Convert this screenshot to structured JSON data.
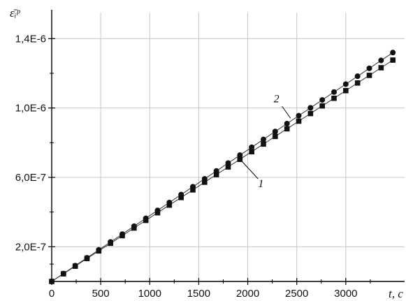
{
  "chart_data": {
    "type": "line",
    "title": "",
    "xlabel": "t, c",
    "ylabel": "ε̄ᵢᵖ",
    "xlim": [
      0,
      3600
    ],
    "ylim": [
      0,
      1.55e-06
    ],
    "grid": true,
    "x_ticks": [
      0,
      500,
      1000,
      1500,
      2000,
      2500,
      3000
    ],
    "x_tick_labels": [
      "0",
      "500",
      "1000",
      "1500",
      "2000",
      "2500",
      "3000"
    ],
    "y_ticks": [
      2e-07,
      6e-07,
      1e-06,
      1.4e-06
    ],
    "y_tick_labels": [
      "2,0E-7",
      "6,0E-7",
      "1,0E-6",
      "1,4E-6"
    ],
    "series": [
      {
        "name": "1",
        "marker": "square",
        "x": [
          0,
          120,
          240,
          360,
          480,
          600,
          720,
          840,
          960,
          1080,
          1200,
          1320,
          1440,
          1560,
          1680,
          1800,
          1920,
          2040,
          2160,
          2280,
          2400,
          2520,
          2640,
          2760,
          2880,
          3000,
          3120,
          3240,
          3360,
          3480
        ],
        "y": [
          0,
          4.4e-08,
          8.8e-08,
          1.32e-07,
          1.76e-07,
          2.2e-07,
          2.64e-07,
          3.08e-07,
          3.52e-07,
          3.96e-07,
          4.4e-07,
          4.84e-07,
          5.28e-07,
          5.72e-07,
          6.16e-07,
          6.6e-07,
          7.04e-07,
          7.48e-07,
          7.92e-07,
          8.36e-07,
          8.8e-07,
          9.24e-07,
          9.68e-07,
          1.012e-06,
          1.056e-06,
          1.1e-06,
          1.144e-06,
          1.188e-06,
          1.232e-06,
          1.276e-06
        ]
      },
      {
        "name": "2",
        "marker": "circle",
        "x": [
          0,
          120,
          240,
          360,
          480,
          600,
          720,
          840,
          960,
          1080,
          1200,
          1320,
          1440,
          1560,
          1680,
          1800,
          1920,
          2040,
          2160,
          2280,
          2400,
          2520,
          2640,
          2760,
          2880,
          3000,
          3120,
          3240,
          3360,
          3480
        ],
        "y": [
          0,
          4.55e-08,
          9.1e-08,
          1.365e-07,
          1.82e-07,
          2.275e-07,
          2.73e-07,
          3.185e-07,
          3.64e-07,
          4.095e-07,
          4.55e-07,
          5.005e-07,
          5.46e-07,
          5.915e-07,
          6.37e-07,
          6.825e-07,
          7.28e-07,
          7.735e-07,
          8.19e-07,
          8.645e-07,
          9.1e-07,
          9.555e-07,
          1.001e-06,
          1.0465e-06,
          1.092e-06,
          1.1375e-06,
          1.183e-06,
          1.2285e-06,
          1.274e-06,
          1.3195e-06
        ]
      }
    ],
    "annotations": [
      {
        "text": "1",
        "series": "1",
        "at_x": 1920
      },
      {
        "text": "2",
        "series": "2",
        "at_x": 2450
      }
    ]
  }
}
